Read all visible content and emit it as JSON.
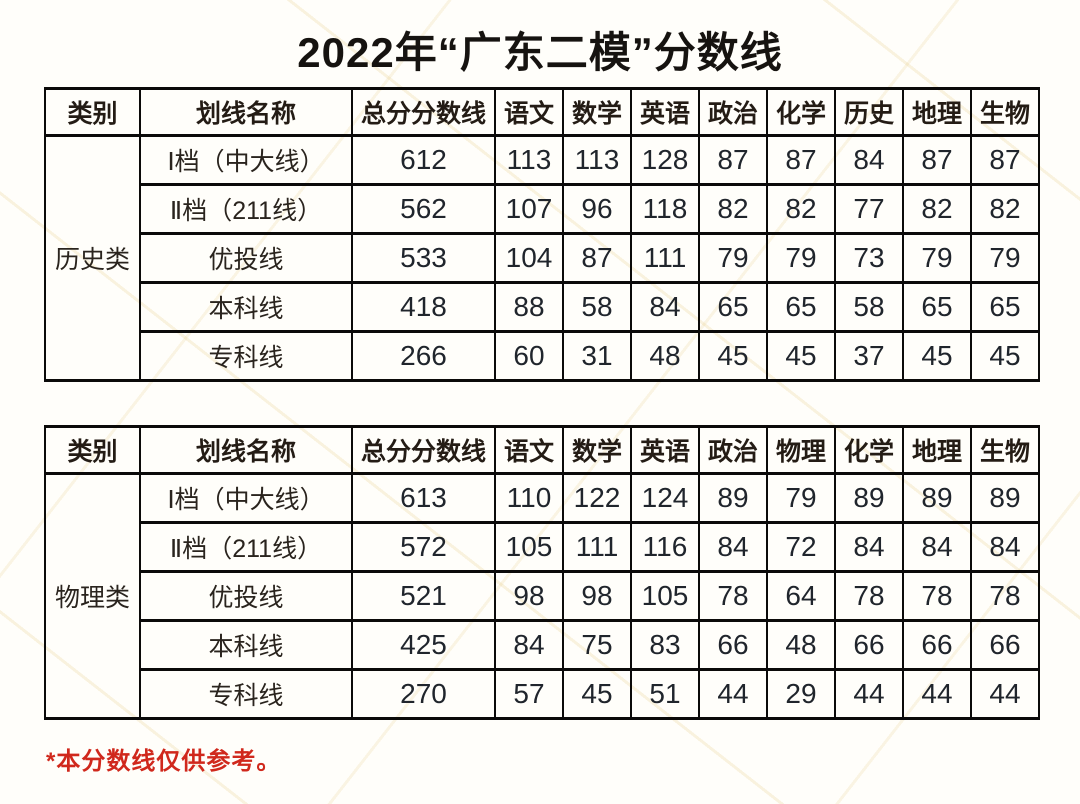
{
  "title": "2022年“广东二模”分数线",
  "footnote": "*本分数线仅供参考。",
  "colors": {
    "background": "#fffefa",
    "border": "#0b0a09",
    "text": "#20252c",
    "footnote_red": "#d0281c",
    "watermark_tint": "#e4c67a"
  },
  "tables": [
    {
      "category": "历史类",
      "headers": [
        "类别",
        "划线名称",
        "总分分数线",
        "语文",
        "数学",
        "英语",
        "政治",
        "化学",
        "历史",
        "地理",
        "生物"
      ],
      "rows": [
        {
          "name": "Ⅰ档（中大线）",
          "values": [
            612,
            113,
            113,
            128,
            87,
            87,
            84,
            87,
            87
          ]
        },
        {
          "name": "Ⅱ档（211线）",
          "values": [
            562,
            107,
            96,
            118,
            82,
            82,
            77,
            82,
            82
          ]
        },
        {
          "name": "优投线",
          "values": [
            533,
            104,
            87,
            111,
            79,
            79,
            73,
            79,
            79
          ]
        },
        {
          "name": "本科线",
          "values": [
            418,
            88,
            58,
            84,
            65,
            65,
            58,
            65,
            65
          ]
        },
        {
          "name": "专科线",
          "values": [
            266,
            60,
            31,
            48,
            45,
            45,
            37,
            45,
            45
          ]
        }
      ]
    },
    {
      "category": "物理类",
      "headers": [
        "类别",
        "划线名称",
        "总分分数线",
        "语文",
        "数学",
        "英语",
        "政治",
        "物理",
        "化学",
        "地理",
        "生物"
      ],
      "rows": [
        {
          "name": "Ⅰ档（中大线）",
          "values": [
            613,
            110,
            122,
            124,
            89,
            79,
            89,
            89,
            89
          ]
        },
        {
          "name": "Ⅱ档（211线）",
          "values": [
            572,
            105,
            111,
            116,
            84,
            72,
            84,
            84,
            84
          ]
        },
        {
          "name": "优投线",
          "values": [
            521,
            98,
            98,
            105,
            78,
            64,
            78,
            78,
            78
          ]
        },
        {
          "name": "本科线",
          "values": [
            425,
            84,
            75,
            83,
            66,
            48,
            66,
            66,
            66
          ]
        },
        {
          "name": "专科线",
          "values": [
            270,
            57,
            45,
            51,
            44,
            29,
            44,
            44,
            44
          ]
        }
      ]
    }
  ]
}
